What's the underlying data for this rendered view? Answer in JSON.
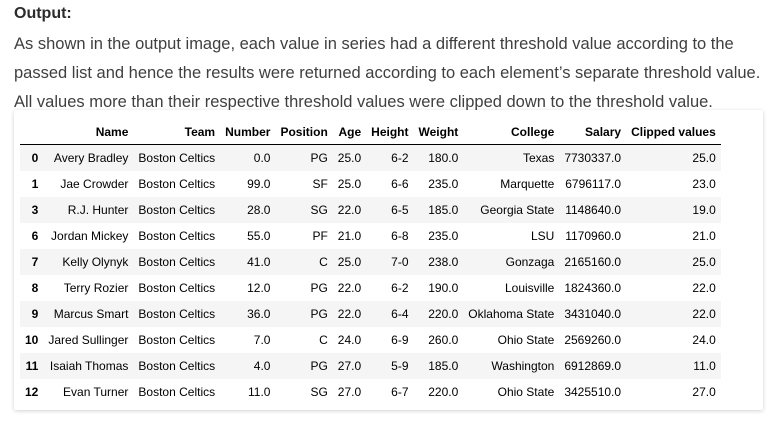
{
  "heading": "Output:",
  "description": "As shown in the output image, each value in series had a different threshold value according to the passed list and hence the results were returned according to each element’s separate threshold value. All values more than their respective threshold values were clipped down to the threshold value.",
  "table": {
    "columns": [
      "Name",
      "Team",
      "Number",
      "Position",
      "Age",
      "Height",
      "Weight",
      "College",
      "Salary",
      "Clipped values"
    ],
    "rows": [
      {
        "index": "0",
        "name": "Avery Bradley",
        "team": "Boston Celtics",
        "number": "0.0",
        "position": "PG",
        "age": "25.0",
        "height": "6-2",
        "weight": "180.0",
        "college": "Texas",
        "salary": "7730337.0",
        "clipped": "25.0"
      },
      {
        "index": "1",
        "name": "Jae Crowder",
        "team": "Boston Celtics",
        "number": "99.0",
        "position": "SF",
        "age": "25.0",
        "height": "6-6",
        "weight": "235.0",
        "college": "Marquette",
        "salary": "6796117.0",
        "clipped": "23.0"
      },
      {
        "index": "3",
        "name": "R.J. Hunter",
        "team": "Boston Celtics",
        "number": "28.0",
        "position": "SG",
        "age": "22.0",
        "height": "6-5",
        "weight": "185.0",
        "college": "Georgia State",
        "salary": "1148640.0",
        "clipped": "19.0"
      },
      {
        "index": "6",
        "name": "Jordan Mickey",
        "team": "Boston Celtics",
        "number": "55.0",
        "position": "PF",
        "age": "21.0",
        "height": "6-8",
        "weight": "235.0",
        "college": "LSU",
        "salary": "1170960.0",
        "clipped": "21.0"
      },
      {
        "index": "7",
        "name": "Kelly Olynyk",
        "team": "Boston Celtics",
        "number": "41.0",
        "position": "C",
        "age": "25.0",
        "height": "7-0",
        "weight": "238.0",
        "college": "Gonzaga",
        "salary": "2165160.0",
        "clipped": "25.0"
      },
      {
        "index": "8",
        "name": "Terry Rozier",
        "team": "Boston Celtics",
        "number": "12.0",
        "position": "PG",
        "age": "22.0",
        "height": "6-2",
        "weight": "190.0",
        "college": "Louisville",
        "salary": "1824360.0",
        "clipped": "22.0"
      },
      {
        "index": "9",
        "name": "Marcus Smart",
        "team": "Boston Celtics",
        "number": "36.0",
        "position": "PG",
        "age": "22.0",
        "height": "6-4",
        "weight": "220.0",
        "college": "Oklahoma State",
        "salary": "3431040.0",
        "clipped": "22.0"
      },
      {
        "index": "10",
        "name": "Jared Sullinger",
        "team": "Boston Celtics",
        "number": "7.0",
        "position": "C",
        "age": "24.0",
        "height": "6-9",
        "weight": "260.0",
        "college": "Ohio State",
        "salary": "2569260.0",
        "clipped": "24.0"
      },
      {
        "index": "11",
        "name": "Isaiah Thomas",
        "team": "Boston Celtics",
        "number": "4.0",
        "position": "PG",
        "age": "27.0",
        "height": "5-9",
        "weight": "185.0",
        "college": "Washington",
        "salary": "6912869.0",
        "clipped": "11.0"
      },
      {
        "index": "12",
        "name": "Evan Turner",
        "team": "Boston Celtics",
        "number": "11.0",
        "position": "SG",
        "age": "27.0",
        "height": "6-7",
        "weight": "220.0",
        "college": "Ohio State",
        "salary": "3425510.0",
        "clipped": "27.0"
      }
    ]
  }
}
